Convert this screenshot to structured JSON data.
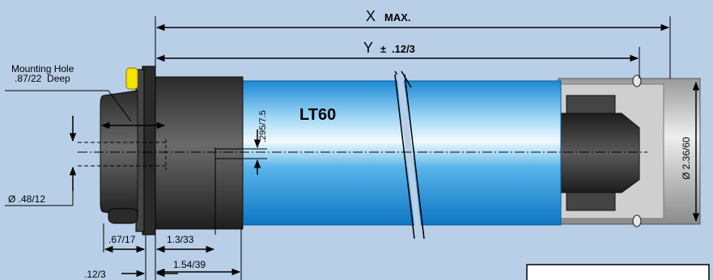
{
  "diagram": {
    "model": "LT60",
    "x_letter": "X",
    "x_suffix": "MAX.",
    "y_letter": "Y",
    "y_pm": "±",
    "y_tol": ".12/3",
    "mounting_hole_line1": "Mounting Hole",
    "mounting_hole_line2": ".87/22  Deep",
    "dim_295": ".295/7.5",
    "dia_236": "Ø 2.36/60",
    "dia_48": "Ø .48/12",
    "dim_67": ".67/17",
    "dim_13": "1.3/33",
    "dim_154": "1.54/39",
    "dim_12": ".12/3"
  },
  "colors": {
    "background": "#b9cfe8",
    "tube": "#2a96d8",
    "motor_head": "#3a3a3a",
    "yellow_cap": "#f5e400"
  }
}
